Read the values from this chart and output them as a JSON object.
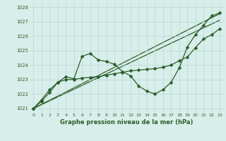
{
  "title": "Graphe pression niveau de la mer (hPa)",
  "background_color": "#d8eeea",
  "grid_color": "#b8d8d4",
  "line_color": "#2a5e2a",
  "xlim": [
    -0.5,
    23.5
  ],
  "ylim": [
    1020.7,
    1028.3
  ],
  "xtick_labels": [
    "0",
    "1",
    "2",
    "3",
    "4",
    "5",
    "6",
    "7",
    "8",
    "9",
    "10",
    "11",
    "12",
    "13",
    "14",
    "15",
    "16",
    "17",
    "18",
    "19",
    "20",
    "21",
    "22",
    "23"
  ],
  "xtick_vals": [
    0,
    1,
    2,
    3,
    4,
    5,
    6,
    7,
    8,
    9,
    10,
    11,
    12,
    13,
    14,
    15,
    16,
    17,
    18,
    19,
    20,
    21,
    22,
    23
  ],
  "ytick_vals": [
    1021,
    1022,
    1023,
    1024,
    1025,
    1026,
    1027,
    1028
  ],
  "series_wavy": {
    "x": [
      0,
      1,
      2,
      3,
      4,
      5,
      6,
      7,
      8,
      9,
      10,
      11,
      12,
      13,
      14,
      15,
      16,
      17,
      18,
      19,
      20,
      21,
      22,
      23
    ],
    "y": [
      1021.0,
      1021.6,
      1022.3,
      1022.8,
      1023.2,
      1023.05,
      1024.6,
      1024.8,
      1024.35,
      1024.25,
      1024.05,
      1023.55,
      1023.25,
      1022.55,
      1022.2,
      1022.0,
      1022.3,
      1022.8,
      1023.8,
      1025.25,
      1026.1,
      1026.75,
      1027.4,
      1027.6
    ]
  },
  "series_smooth": {
    "x": [
      0,
      1,
      2,
      3,
      4,
      5,
      6,
      7,
      8,
      9,
      10,
      11,
      12,
      13,
      14,
      15,
      16,
      17,
      18,
      19,
      20,
      21,
      22,
      23
    ],
    "y": [
      1021.0,
      1021.5,
      1022.1,
      1022.8,
      1023.0,
      1023.0,
      1023.1,
      1023.15,
      1023.2,
      1023.3,
      1023.4,
      1023.5,
      1023.6,
      1023.65,
      1023.7,
      1023.75,
      1023.85,
      1024.0,
      1024.3,
      1024.55,
      1025.2,
      1025.8,
      1026.1,
      1026.5
    ]
  },
  "series_line1": {
    "x": [
      0,
      23
    ],
    "y": [
      1021.0,
      1027.1
    ]
  },
  "series_line2": {
    "x": [
      0,
      23
    ],
    "y": [
      1021.0,
      1027.55
    ]
  }
}
